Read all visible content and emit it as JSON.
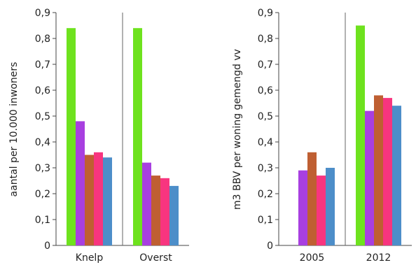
{
  "chart_data": [
    {
      "type": "bar",
      "ylabel": "aantal per 10.000 inwoners",
      "ylim": [
        0,
        0.9
      ],
      "yticks": [
        "0",
        "0,1",
        "0,2",
        "0,3",
        "0,4",
        "0,5",
        "0,6",
        "0,7",
        "0,8",
        "0,9"
      ],
      "categories": [
        "Knelp",
        "Overst"
      ],
      "grid": false,
      "series": [
        {
          "color": "#6ee21e",
          "values": [
            0.84,
            0.84
          ]
        },
        {
          "color": "#a83fe0",
          "values": [
            0.48,
            0.32
          ]
        },
        {
          "color": "#bf5f32",
          "values": [
            0.35,
            0.27
          ]
        },
        {
          "color": "#f8357f",
          "values": [
            0.36,
            0.26
          ]
        },
        {
          "color": "#4d8ec9",
          "values": [
            0.34,
            0.23
          ]
        }
      ]
    },
    {
      "type": "bar",
      "ylabel": "m3 BBV per woning gemengd vv",
      "ylim": [
        0,
        0.9
      ],
      "yticks": [
        "0",
        "0,1",
        "0,2",
        "0,3",
        "0,4",
        "0,5",
        "0,6",
        "0,7",
        "0,8",
        "0,9"
      ],
      "categories": [
        "2005",
        "2012"
      ],
      "grid": false,
      "series": [
        {
          "color": "#6ee21e",
          "values": [
            null,
            0.85
          ]
        },
        {
          "color": "#a83fe0",
          "values": [
            0.29,
            0.52
          ]
        },
        {
          "color": "#bf5f32",
          "values": [
            0.36,
            0.58
          ]
        },
        {
          "color": "#f8357f",
          "values": [
            0.27,
            0.57
          ]
        },
        {
          "color": "#4d8ec9",
          "values": [
            0.3,
            0.54
          ]
        }
      ]
    }
  ]
}
